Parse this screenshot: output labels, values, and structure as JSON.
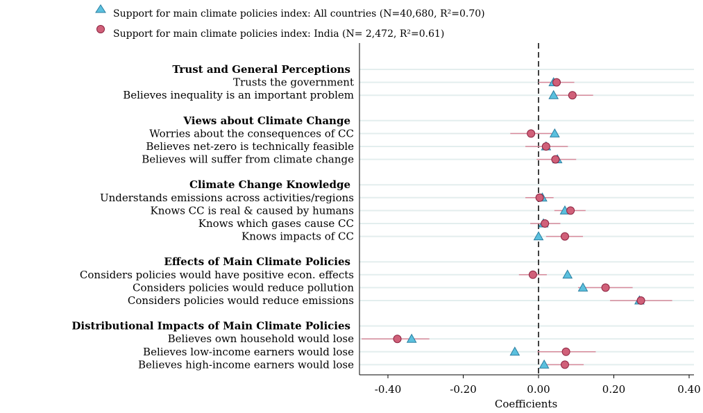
{
  "chart_data": {
    "type": "scatter",
    "title": "",
    "xlabel": "Coefficients",
    "ylabel": "",
    "xlim": [
      -0.47,
      0.41
    ],
    "x_ticks": [
      -0.4,
      -0.2,
      0.0,
      0.2,
      0.4
    ],
    "x_tick_labels": [
      "-0.40",
      "-0.20",
      "0.00",
      "0.20",
      "0.40"
    ],
    "reference_line": 0.0,
    "legend": {
      "placement": "top-left",
      "entries": [
        {
          "key": "all",
          "label": "Support for main climate policies index: All countries (N=40,680, R²=0.70)"
        },
        {
          "key": "india",
          "label": "Support for main climate policies index: India (N= 2,472, R²=0.61)"
        }
      ]
    },
    "colors": {
      "all": "#5bc0de",
      "all_edge": "#2a7ea0",
      "india": "#d06079",
      "india_edge": "#8c2340",
      "india_ci": "#d88a9b",
      "grid": "#e3eeee"
    },
    "groups": [
      {
        "title": "Trust and General Perceptions",
        "rows": [
          {
            "label": "Trusts the government",
            "all": 0.04,
            "india": 0.048,
            "india_ci": [
              0.0,
              0.095
            ]
          },
          {
            "label": "Believes inequality is an important problem",
            "all": 0.04,
            "india": 0.09,
            "india_ci": [
              0.035,
              0.145
            ]
          }
        ]
      },
      {
        "title": "Views about Climate Change",
        "rows": [
          {
            "label": "Worries about the consequences of CC",
            "all": 0.043,
            "india": -0.02,
            "india_ci": [
              -0.075,
              0.035
            ]
          },
          {
            "label": "Believes net-zero is technically feasible",
            "all": 0.02,
            "india": 0.02,
            "india_ci": [
              -0.035,
              0.078
            ]
          },
          {
            "label": "Believes will suffer from climate change",
            "all": 0.05,
            "india": 0.045,
            "india_ci": [
              -0.005,
              0.1
            ]
          }
        ]
      },
      {
        "title": "Climate Change Knowledge",
        "rows": [
          {
            "label": "Understands emissions across activities/regions",
            "all": 0.01,
            "india": 0.003,
            "india_ci": [
              -0.035,
              0.04
            ]
          },
          {
            "label": "Knows CC is real & caused by humans",
            "all": 0.07,
            "india": 0.085,
            "india_ci": [
              0.042,
              0.125
            ]
          },
          {
            "label": "Knows which gases cause CC",
            "all": 0.013,
            "india": 0.017,
            "india_ci": [
              -0.022,
              0.058
            ]
          },
          {
            "label": "Knows impacts of CC",
            "all": 0.0,
            "india": 0.07,
            "india_ci": [
              0.02,
              0.118
            ]
          }
        ]
      },
      {
        "title": "Effects of Main Climate Policies",
        "rows": [
          {
            "label": "Considers policies would have positive econ. effects",
            "all": 0.077,
            "india": -0.015,
            "india_ci": [
              -0.052,
              0.022
            ]
          },
          {
            "label": "Considers policies would reduce pollution",
            "all": 0.118,
            "india": 0.178,
            "india_ci": [
              0.105,
              0.25
            ]
          },
          {
            "label": "Considers policies would reduce emissions",
            "all": 0.268,
            "india": 0.272,
            "india_ci": [
              0.19,
              0.355
            ]
          }
        ]
      },
      {
        "title": "Distributional Impacts of Main Climate Policies",
        "rows": [
          {
            "label": "Believes own household would lose",
            "all": -0.337,
            "india": -0.375,
            "india_ci": [
              -0.47,
              -0.29
            ]
          },
          {
            "label": "Believes low-income earners would lose",
            "all": -0.063,
            "india": 0.073,
            "india_ci": [
              -0.003,
              0.152
            ]
          },
          {
            "label": "Believes high-income earners would lose",
            "all": 0.015,
            "india": 0.07,
            "india_ci": [
              0.022,
              0.12
            ]
          }
        ]
      }
    ]
  }
}
